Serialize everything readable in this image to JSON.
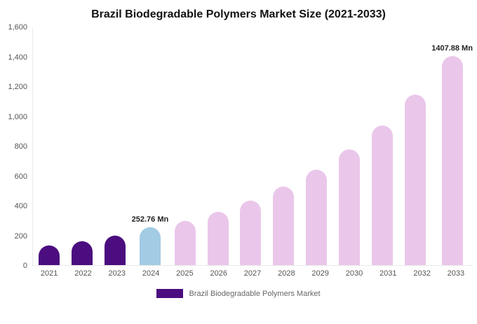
{
  "page": {
    "title": "Brazil Biodegradable Polymers Market Size (2021-2033)"
  },
  "legend": {
    "label": "Brazil Biodegradable Polymers Market",
    "swatch_color": "#4b0d7f"
  },
  "chart_data": {
    "type": "bar",
    "title": "Brazil Biodegradable Polymers Market Size (2021-2033)",
    "xlabel": "",
    "ylabel": "",
    "unit": "Mn",
    "categories": [
      "2021",
      "2022",
      "2023",
      "2024",
      "2025",
      "2026",
      "2027",
      "2028",
      "2029",
      "2030",
      "2031",
      "2032",
      "2033"
    ],
    "values": [
      130,
      162,
      196,
      252.76,
      298,
      358,
      436,
      527,
      640,
      780,
      940,
      1148,
      1407.88
    ],
    "bar_colors": [
      "#4b0d7f",
      "#4b0d7f",
      "#4b0d7f",
      "#a2cbe4",
      "#eac7ea",
      "#eac7ea",
      "#eac7ea",
      "#eac7ea",
      "#eac7ea",
      "#eac7ea",
      "#eac7ea",
      "#eac7ea",
      "#eac7ea"
    ],
    "point_labels": [
      "",
      "",
      "",
      "252.76 Mn",
      "",
      "",
      "",
      "",
      "",
      "",
      "",
      "",
      "1407.88 Mn"
    ],
    "ylim": [
      0,
      1600
    ],
    "ytick_values": [
      0,
      200,
      400,
      600,
      800,
      1000,
      1200,
      1400,
      1600
    ],
    "ytick_labels": [
      "0",
      "200",
      "400",
      "600",
      "800",
      "1,000",
      "1,200",
      "1,400",
      "1,600"
    ],
    "grid": false,
    "legend_position": "bottom"
  }
}
